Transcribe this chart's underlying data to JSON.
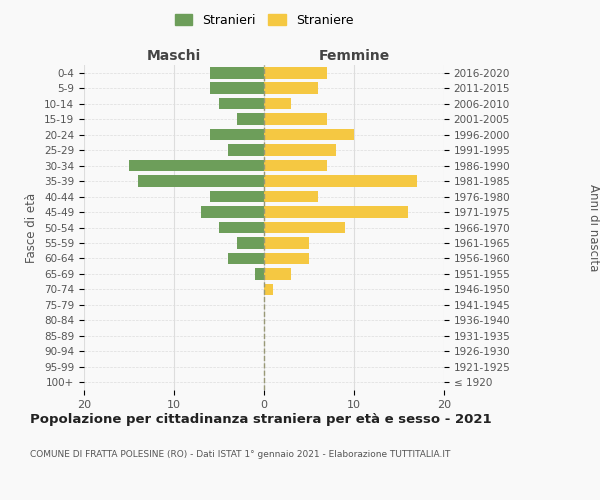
{
  "age_groups": [
    "100+",
    "95-99",
    "90-94",
    "85-89",
    "80-84",
    "75-79",
    "70-74",
    "65-69",
    "60-64",
    "55-59",
    "50-54",
    "45-49",
    "40-44",
    "35-39",
    "30-34",
    "25-29",
    "20-24",
    "15-19",
    "10-14",
    "5-9",
    "0-4"
  ],
  "birth_years": [
    "≤ 1920",
    "1921-1925",
    "1926-1930",
    "1931-1935",
    "1936-1940",
    "1941-1945",
    "1946-1950",
    "1951-1955",
    "1956-1960",
    "1961-1965",
    "1966-1970",
    "1971-1975",
    "1976-1980",
    "1981-1985",
    "1986-1990",
    "1991-1995",
    "1996-2000",
    "2001-2005",
    "2006-2010",
    "2011-2015",
    "2016-2020"
  ],
  "maschi": [
    0,
    0,
    0,
    0,
    0,
    0,
    0,
    1,
    4,
    3,
    5,
    7,
    6,
    14,
    15,
    4,
    6,
    3,
    5,
    6,
    6
  ],
  "femmine": [
    0,
    0,
    0,
    0,
    0,
    0,
    1,
    3,
    5,
    5,
    9,
    16,
    6,
    17,
    7,
    8,
    10,
    7,
    3,
    6,
    7
  ],
  "color_maschi": "#6d9e5a",
  "color_femmine": "#f5c842",
  "background_color": "#f9f9f9",
  "grid_color": "#dddddd",
  "title": "Popolazione per cittadinanza straniera per età e sesso - 2021",
  "subtitle": "COMUNE DI FRATTA POLESINE (RO) - Dati ISTAT 1° gennaio 2021 - Elaborazione TUTTITALIA.IT",
  "xlabel_left": "Maschi",
  "xlabel_right": "Femmine",
  "ylabel_left": "Fasce di età",
  "ylabel_right": "Anni di nascita",
  "legend_maschi": "Stranieri",
  "legend_femmine": "Straniere",
  "xlim": 20
}
